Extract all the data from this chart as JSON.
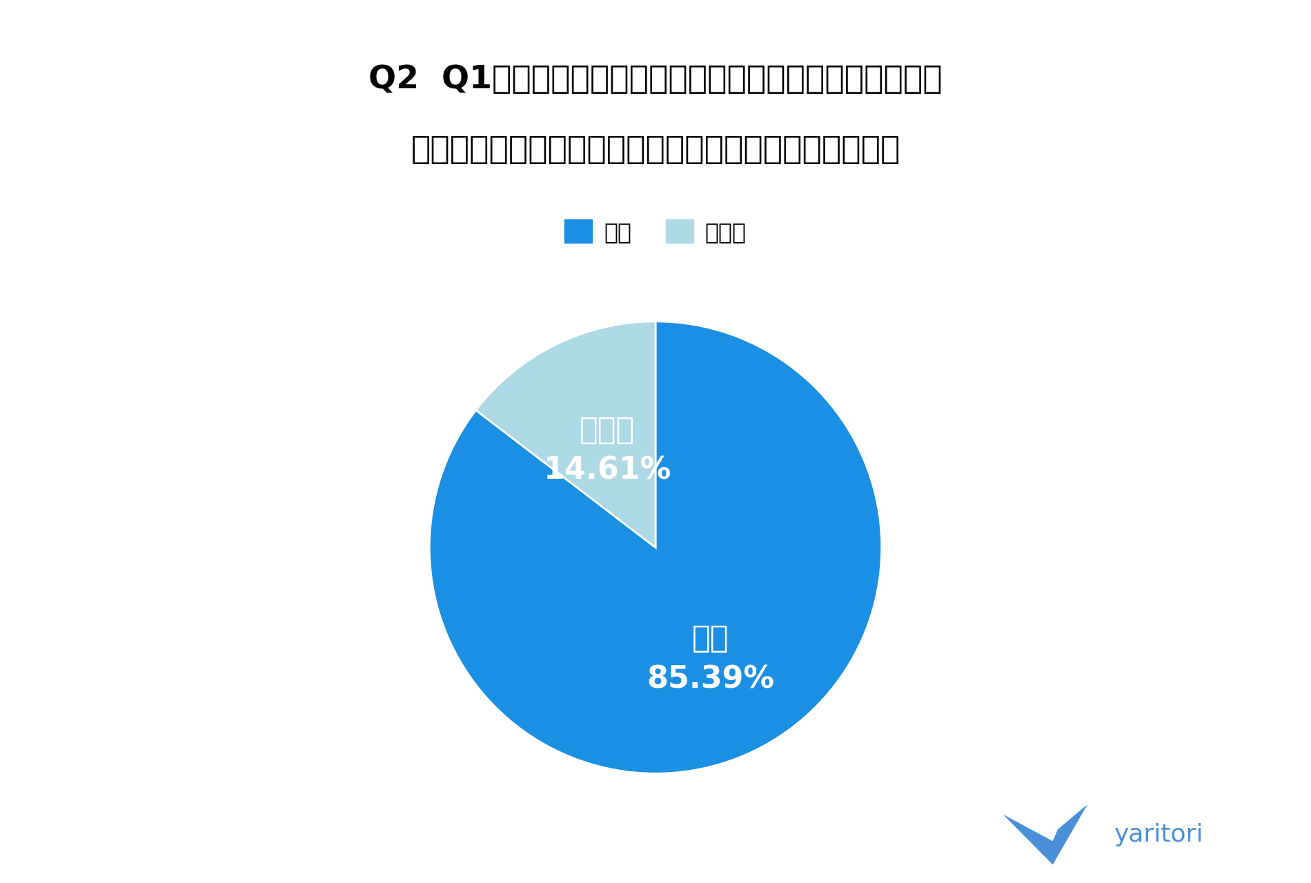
{
  "title_line1": "Q2  Q1で「はい」と回答した方へ。休みの日に仕事の連絡",
  "title_line2": "（メール・チャット等）に返信したことがありますか？",
  "labels": [
    "はい",
    "いいえ"
  ],
  "values": [
    85.39,
    14.61
  ],
  "colors": [
    "#1a8fe3",
    "#add8e6"
  ],
  "label_hai": "はい",
  "label_iie": "いいえ",
  "pct_hai": "85.39%",
  "pct_iie": "14.61%",
  "legend_labels": [
    "はい",
    "いいえ"
  ],
  "legend_colors": [
    "#1a8fe3",
    "#add8e6"
  ],
  "yaritori_color": "#4a90d9",
  "background_color": "#ffffff",
  "title_fontsize": 34,
  "label_fontsize": 32,
  "pct_fontsize": 32,
  "legend_fontsize": 24
}
